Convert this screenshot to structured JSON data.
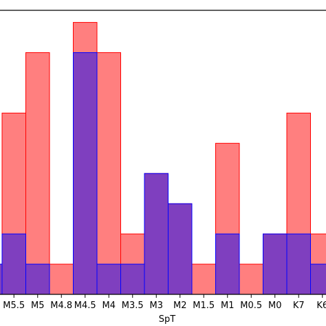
{
  "chart_data": {
    "type": "bar",
    "title": "",
    "xlabel": "SpT",
    "ylabel": "",
    "grid": false,
    "legend": "none",
    "ylim": [
      0,
      9.4
    ],
    "categories_visible": [
      "M5.5",
      "M5",
      "M4.8",
      "M4.5",
      "M4",
      "M3.5",
      "M3",
      "M2",
      "M1.5",
      "M1",
      "M0.5",
      "M0",
      "K7",
      "K6"
    ],
    "categories_all": [
      "",
      "M5.5",
      "M5",
      "M4.8",
      "M4.5",
      "M4",
      "M3.5",
      "M3",
      "M2",
      "M1.5",
      "M1",
      "M0.5",
      "M0",
      "K7",
      "K6"
    ],
    "series": [
      {
        "values": [
          1,
          6,
          8,
          1,
          9,
          8,
          2,
          4,
          3,
          1,
          5,
          1,
          2,
          6,
          2
        ],
        "color": "#ff0000",
        "alpha": 0.5
      },
      {
        "values": [
          1,
          2,
          1,
          0,
          8,
          1,
          1,
          4,
          3,
          0,
          2,
          0,
          2,
          2,
          1
        ],
        "color": "#0000ff",
        "alpha": 0.5
      }
    ]
  }
}
